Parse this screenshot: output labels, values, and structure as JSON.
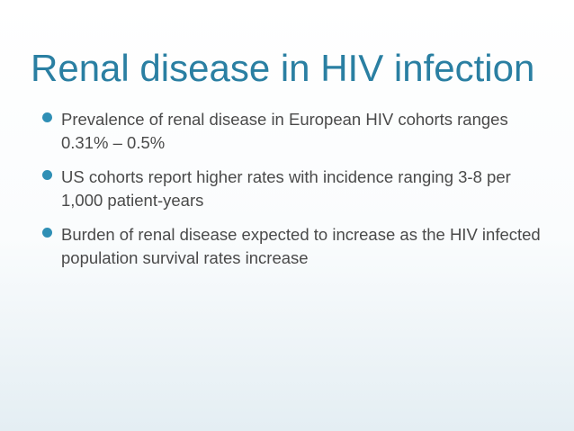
{
  "slide": {
    "title": "Renal disease in HIV infection",
    "bullets": [
      "Prevalence of renal disease in European HIV cohorts ranges 0.31% – 0.5%",
      "US cohorts report higher rates with incidence ranging 3-8 per 1,000 patient-years",
      "Burden of renal disease expected to increase as the HIV infected population survival rates increase"
    ]
  },
  "colors": {
    "title": "#2a7fa2",
    "bullet_marker": "#2f8fb5",
    "body_text": "#4a4a4a",
    "background_bottom": "#e4eef3"
  },
  "icons": {
    "bullet_marker": "bullet-dot-icon"
  }
}
